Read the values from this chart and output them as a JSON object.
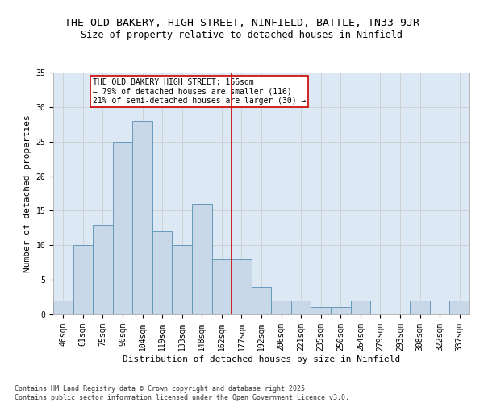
{
  "title1": "THE OLD BAKERY, HIGH STREET, NINFIELD, BATTLE, TN33 9JR",
  "title2": "Size of property relative to detached houses in Ninfield",
  "xlabel": "Distribution of detached houses by size in Ninfield",
  "ylabel": "Number of detached properties",
  "bar_labels": [
    "46sqm",
    "61sqm",
    "75sqm",
    "90sqm",
    "104sqm",
    "119sqm",
    "133sqm",
    "148sqm",
    "162sqm",
    "177sqm",
    "192sqm",
    "206sqm",
    "221sqm",
    "235sqm",
    "250sqm",
    "264sqm",
    "279sqm",
    "293sqm",
    "308sqm",
    "322sqm",
    "337sqm"
  ],
  "bar_values": [
    2,
    10,
    13,
    25,
    28,
    12,
    10,
    16,
    8,
    8,
    4,
    2,
    2,
    1,
    1,
    2,
    0,
    0,
    2,
    0,
    2
  ],
  "bar_color": "#c8d8e8",
  "bar_edgecolor": "#6699bb",
  "vline_index": 8,
  "annotation_title": "THE OLD BAKERY HIGH STREET: 166sqm",
  "annotation_line1": "← 79% of detached houses are smaller (116)",
  "annotation_line2": "21% of semi-detached houses are larger (30) →",
  "vline_color": "#cc0000",
  "annotation_box_edgecolor": "#cc0000",
  "footnote": "Contains HM Land Registry data © Crown copyright and database right 2025.\nContains public sector information licensed under the Open Government Licence v3.0.",
  "ylim": [
    0,
    35
  ],
  "yticks": [
    0,
    5,
    10,
    15,
    20,
    25,
    30,
    35
  ],
  "grid_color": "#cccccc",
  "background_color": "#dce9f5",
  "title_fontsize": 9.5,
  "subtitle_fontsize": 8.5,
  "axis_label_fontsize": 8,
  "tick_fontsize": 7,
  "annotation_fontsize": 7,
  "footnote_fontsize": 6
}
